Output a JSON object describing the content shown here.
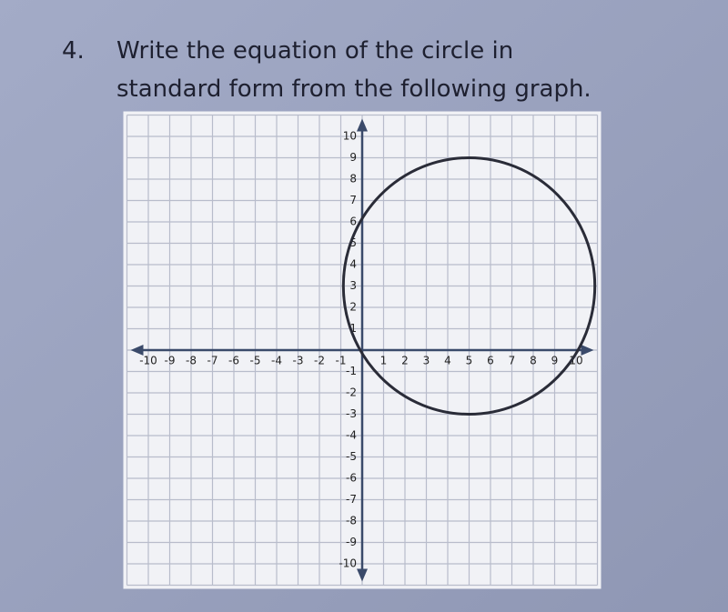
{
  "question": {
    "number": "4.",
    "lines": [
      "Write the equation of the circle in",
      "standard form from the following graph."
    ]
  },
  "graph": {
    "xlim": [
      -11,
      11
    ],
    "ylim": [
      -11,
      11
    ],
    "xticks": [
      -10,
      -9,
      -8,
      -7,
      -6,
      -5,
      -4,
      -3,
      -2,
      -1,
      1,
      2,
      3,
      4,
      5,
      6,
      7,
      8,
      9,
      10
    ],
    "yticks": [
      10,
      9,
      8,
      7,
      6,
      5,
      4,
      3,
      2,
      1,
      -1,
      -2,
      -3,
      -4,
      -5,
      -6,
      -7,
      -8,
      -9,
      -10
    ],
    "circle": {
      "center_x": 5,
      "center_y": 3,
      "radius": 6
    }
  }
}
